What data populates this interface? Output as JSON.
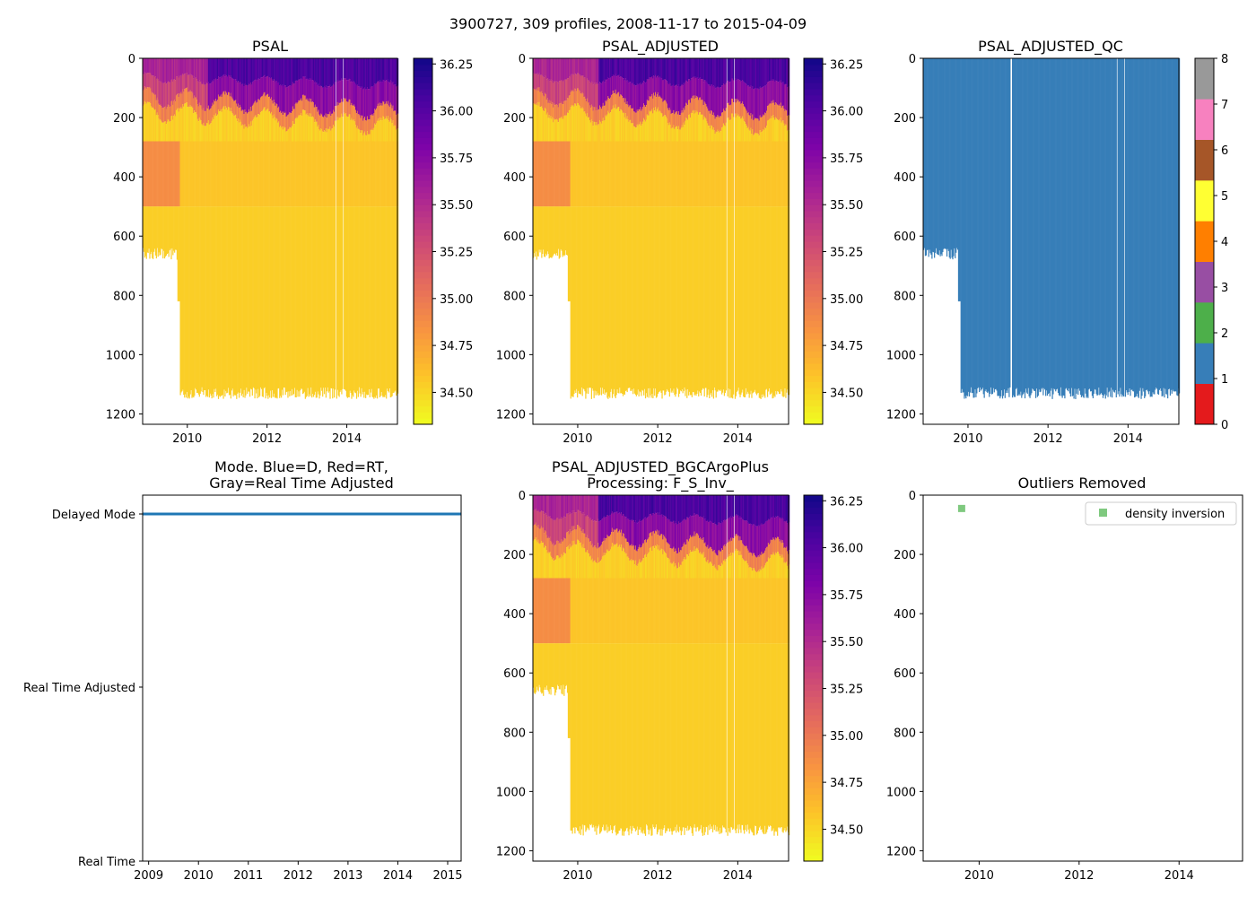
{
  "figure": {
    "suptitle": "3900727, 309 profiles, 2008-11-17 to 2015-04-09"
  },
  "chart_data": [
    {
      "id": "psal",
      "type": "heatmap",
      "title": "PSAL",
      "xlim": [
        2008.88,
        2015.27
      ],
      "ylim": [
        1235,
        0
      ],
      "xticks": [
        "2010",
        "2012",
        "2014"
      ],
      "yticks": [
        "0",
        "200",
        "400",
        "600",
        "800",
        "1000",
        "1200"
      ],
      "colorbar": {
        "min": 34.33,
        "max": 36.28,
        "ticks": [
          "34.50",
          "34.75",
          "35.00",
          "35.25",
          "35.50",
          "35.75",
          "36.00",
          "36.25"
        ]
      },
      "max_depth_before_2009_8": 650,
      "max_depth_after_2009_8": 1130,
      "gaps_years": [
        2013.72,
        2013.9
      ]
    },
    {
      "id": "psal_adjusted",
      "type": "heatmap",
      "title": "PSAL_ADJUSTED",
      "xlim": [
        2008.88,
        2015.27
      ],
      "ylim": [
        1235,
        0
      ],
      "xticks": [
        "2010",
        "2012",
        "2014"
      ],
      "yticks": [
        "0",
        "200",
        "400",
        "600",
        "800",
        "1000",
        "1200"
      ],
      "colorbar": {
        "min": 34.33,
        "max": 36.28,
        "ticks": [
          "34.50",
          "34.75",
          "35.00",
          "35.25",
          "35.50",
          "35.75",
          "36.00",
          "36.25"
        ]
      },
      "max_depth_before_2009_8": 650,
      "max_depth_after_2009_8": 1130,
      "gaps_years": [
        2013.72,
        2013.9
      ]
    },
    {
      "id": "psal_adjusted_qc",
      "type": "heatmap",
      "title": "PSAL_ADJUSTED_QC",
      "xlim": [
        2008.88,
        2015.27
      ],
      "ylim": [
        1235,
        0
      ],
      "xticks": [
        "2010",
        "2012",
        "2014"
      ],
      "yticks": [
        "0",
        "200",
        "400",
        "600",
        "800",
        "1000",
        "1200"
      ],
      "qc_value_shown": 1,
      "colorbar": {
        "min": 0,
        "max": 8,
        "ticks": [
          "0",
          "1",
          "2",
          "3",
          "4",
          "5",
          "6",
          "7",
          "8"
        ],
        "colors": [
          "#e41a1c",
          "#377eb8",
          "#4daf4a",
          "#984ea3",
          "#ff7f00",
          "#ffff33",
          "#a65628",
          "#f781bf",
          "#999999"
        ]
      },
      "gaps_years": [
        2011.07,
        2013.72,
        2013.9
      ]
    },
    {
      "id": "mode",
      "type": "scatter",
      "title_line1": "Mode. Blue=D, Red=RT,",
      "title_line2": "Gray=Real Time Adjusted",
      "xlim": [
        2008.88,
        2015.27
      ],
      "xticks": [
        "2009",
        "2010",
        "2011",
        "2012",
        "2013",
        "2014",
        "2015"
      ],
      "ycategories": [
        "Real Time",
        "Real Time Adjusted",
        "Delayed Mode"
      ],
      "series": [
        {
          "name": "Delayed Mode",
          "color": "#1f77b4",
          "y": "Delayed Mode",
          "x_range": [
            2008.88,
            2015.27
          ]
        }
      ]
    },
    {
      "id": "bgcargoplus",
      "type": "heatmap",
      "title_line1": "PSAL_ADJUSTED_BGCArgoPlus",
      "title_line2": "Processing: F_S_Inv_",
      "xlim": [
        2008.88,
        2015.27
      ],
      "ylim": [
        1235,
        0
      ],
      "xticks": [
        "2010",
        "2012",
        "2014"
      ],
      "yticks": [
        "0",
        "200",
        "400",
        "600",
        "800",
        "1000",
        "1200"
      ],
      "colorbar": {
        "min": 34.33,
        "max": 36.28,
        "ticks": [
          "34.50",
          "34.75",
          "35.00",
          "35.25",
          "35.50",
          "35.75",
          "36.00",
          "36.25"
        ]
      },
      "max_depth_before_2009_8": 650,
      "max_depth_after_2009_8": 1130,
      "gaps_years": [
        2013.72,
        2013.9
      ]
    },
    {
      "id": "outliers",
      "type": "scatter",
      "title": "Outliers Removed",
      "xlim": [
        2008.88,
        2015.27
      ],
      "ylim": [
        1235,
        0
      ],
      "xticks": [
        "2010",
        "2012",
        "2014"
      ],
      "yticks": [
        "0",
        "200",
        "400",
        "600",
        "800",
        "1000",
        "1200"
      ],
      "legend": {
        "label": "density inversion",
        "color": "#7fc97f",
        "placement": "top-right"
      },
      "points": [
        {
          "x": 2009.65,
          "y": 45
        }
      ]
    }
  ]
}
